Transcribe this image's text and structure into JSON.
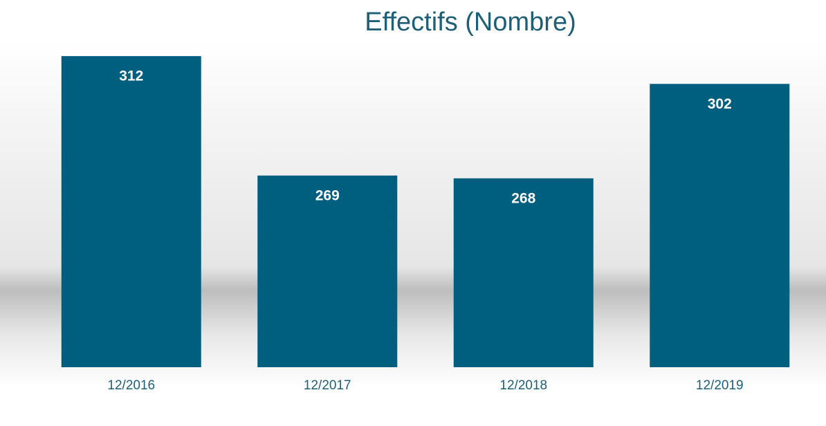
{
  "chart_data": {
    "type": "bar",
    "title": "Effectifs (Nombre)",
    "categories": [
      "12/2016",
      "12/2017",
      "12/2018",
      "12/2019"
    ],
    "values": [
      312,
      269,
      268,
      302
    ],
    "color": "#005f7f",
    "ylim": [
      200,
      320
    ]
  }
}
